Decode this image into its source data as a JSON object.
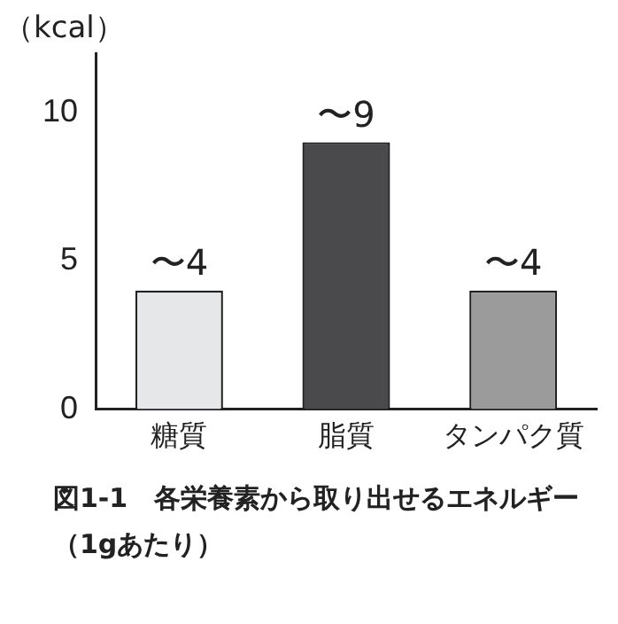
{
  "chart_data": {
    "type": "bar",
    "title": "図1-1　各栄養素から取り出せるエネルギー（1gあたり）",
    "ylabel": "（kcal）",
    "categories": [
      "糖質",
      "脂質",
      "タンパク質"
    ],
    "values": [
      4,
      9,
      4
    ],
    "colors": [
      "#e6e7e8",
      "#4a4a4c",
      "#9b9b9b"
    ],
    "value_labels": [
      "〜4",
      "〜9",
      "〜4"
    ],
    "ylim": [
      0,
      12
    ],
    "yticks": [
      0,
      5,
      10
    ],
    "grid": false,
    "legend": false
  }
}
